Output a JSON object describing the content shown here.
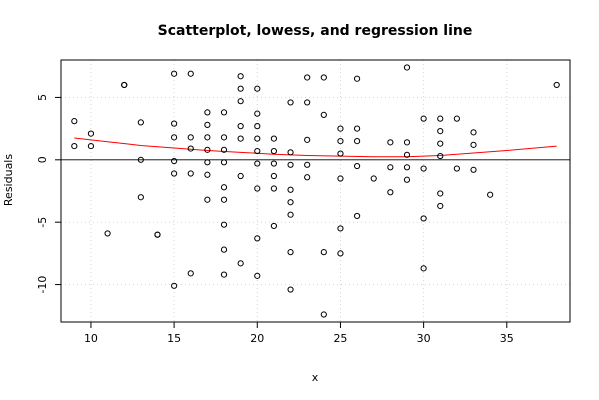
{
  "chart_data": {
    "type": "scatter",
    "title": "Scatterplot, lowess, and regression line",
    "xlabel": "x",
    "ylabel": "Residuals",
    "xlim": [
      8.2,
      38.8
    ],
    "ylim": [
      -13,
      8
    ],
    "x_ticks": [
      10,
      15,
      20,
      25,
      30,
      35
    ],
    "y_ticks": [
      -10,
      -5,
      0,
      5
    ],
    "grid": true,
    "colors": {
      "points": "#000000",
      "lowess": "#ff0000",
      "regression": "#000000",
      "grid": "#d3d3d3",
      "frame": "#000000"
    },
    "points": [
      [
        9,
        3.1
      ],
      [
        9,
        1.1
      ],
      [
        10,
        2.1
      ],
      [
        10,
        1.1
      ],
      [
        11,
        -5.9
      ],
      [
        12,
        6.0
      ],
      [
        12,
        6.0
      ],
      [
        13,
        3.0
      ],
      [
        13,
        0.0
      ],
      [
        13,
        -3.0
      ],
      [
        14,
        -6.0
      ],
      [
        14,
        -6.0
      ],
      [
        15,
        6.9
      ],
      [
        15,
        2.9
      ],
      [
        15,
        1.8
      ],
      [
        15,
        -0.1
      ],
      [
        15,
        -1.1
      ],
      [
        15,
        -10.1
      ],
      [
        16,
        6.9
      ],
      [
        16,
        1.8
      ],
      [
        16,
        0.9
      ],
      [
        16,
        -1.1
      ],
      [
        16,
        -9.1
      ],
      [
        17,
        3.8
      ],
      [
        17,
        2.8
      ],
      [
        17,
        1.8
      ],
      [
        17,
        0.8
      ],
      [
        17,
        -0.2
      ],
      [
        17,
        -1.2
      ],
      [
        17,
        -3.2
      ],
      [
        18,
        3.8
      ],
      [
        18,
        1.8
      ],
      [
        18,
        0.8
      ],
      [
        18,
        -0.2
      ],
      [
        18,
        -2.2
      ],
      [
        18,
        -3.2
      ],
      [
        18,
        -5.2
      ],
      [
        18,
        -7.2
      ],
      [
        18,
        -9.2
      ],
      [
        19,
        6.7
      ],
      [
        19,
        5.7
      ],
      [
        19,
        4.7
      ],
      [
        19,
        2.7
      ],
      [
        19,
        1.7
      ],
      [
        19,
        -1.3
      ],
      [
        19,
        -8.3
      ],
      [
        20,
        5.7
      ],
      [
        20,
        3.7
      ],
      [
        20,
        2.7
      ],
      [
        20,
        1.7
      ],
      [
        20,
        0.7
      ],
      [
        20,
        -0.3
      ],
      [
        20,
        -2.3
      ],
      [
        20,
        -6.3
      ],
      [
        20,
        -9.3
      ],
      [
        21,
        1.7
      ],
      [
        21,
        0.7
      ],
      [
        21,
        -0.3
      ],
      [
        21,
        -1.3
      ],
      [
        21,
        -2.3
      ],
      [
        21,
        -5.3
      ],
      [
        22,
        4.6
      ],
      [
        22,
        0.6
      ],
      [
        22,
        -0.4
      ],
      [
        22,
        -2.4
      ],
      [
        22,
        -3.4
      ],
      [
        22,
        -4.4
      ],
      [
        22,
        -7.4
      ],
      [
        22,
        -10.4
      ],
      [
        23,
        6.6
      ],
      [
        23,
        4.6
      ],
      [
        23,
        1.6
      ],
      [
        23,
        -0.4
      ],
      [
        23,
        -1.4
      ],
      [
        24,
        6.6
      ],
      [
        24,
        3.6
      ],
      [
        24,
        -7.4
      ],
      [
        24,
        -12.4
      ],
      [
        25,
        2.5
      ],
      [
        25,
        1.5
      ],
      [
        25,
        0.5
      ],
      [
        25,
        -1.5
      ],
      [
        25,
        -5.5
      ],
      [
        25,
        -7.5
      ],
      [
        26,
        6.5
      ],
      [
        26,
        2.5
      ],
      [
        26,
        1.5
      ],
      [
        26,
        -0.5
      ],
      [
        26,
        -4.5
      ],
      [
        27,
        -1.5
      ],
      [
        28,
        1.4
      ],
      [
        28,
        -0.6
      ],
      [
        28,
        -2.6
      ],
      [
        29,
        7.4
      ],
      [
        29,
        1.4
      ],
      [
        29,
        0.4
      ],
      [
        29,
        -0.6
      ],
      [
        29,
        -1.6
      ],
      [
        30,
        3.3
      ],
      [
        30,
        -0.7
      ],
      [
        30,
        -4.7
      ],
      [
        30,
        -8.7
      ],
      [
        31,
        3.3
      ],
      [
        31,
        2.3
      ],
      [
        31,
        1.3
      ],
      [
        31,
        0.3
      ],
      [
        31,
        -2.7
      ],
      [
        31,
        -3.7
      ],
      [
        32,
        3.3
      ],
      [
        32,
        -0.7
      ],
      [
        33,
        2.2
      ],
      [
        33,
        1.2
      ],
      [
        33,
        -0.8
      ],
      [
        34,
        -2.8
      ],
      [
        38,
        6.0
      ]
    ],
    "lowess": [
      [
        9,
        1.75
      ],
      [
        11,
        1.45
      ],
      [
        13,
        1.15
      ],
      [
        15,
        0.95
      ],
      [
        17,
        0.75
      ],
      [
        19,
        0.6
      ],
      [
        21,
        0.45
      ],
      [
        23,
        0.35
      ],
      [
        25,
        0.3
      ],
      [
        27,
        0.25
      ],
      [
        29,
        0.25
      ],
      [
        31,
        0.35
      ],
      [
        33,
        0.55
      ],
      [
        35,
        0.75
      ],
      [
        38,
        1.1
      ]
    ],
    "regression": {
      "intercept": 0,
      "slope": 0
    }
  }
}
